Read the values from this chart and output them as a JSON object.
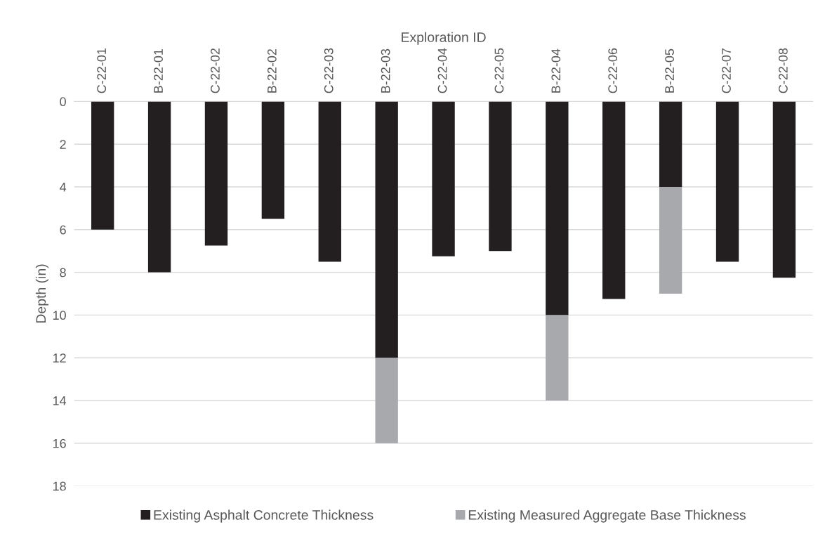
{
  "chart_data": {
    "type": "bar",
    "stacked": true,
    "xlabel": "Exploration ID",
    "ylabel": "Depth (in)",
    "categories": [
      "C-22-01",
      "B-22-01",
      "C-22-02",
      "B-22-02",
      "C-22-03",
      "B-22-03",
      "C-22-04",
      "C-22-05",
      "B-22-04",
      "C-22-06",
      "B-22-05",
      "C-22-07",
      "C-22-08"
    ],
    "series": [
      {
        "name": "Existing Asphalt Concrete Thickness",
        "color": "#231f20",
        "values": [
          6,
          8,
          6.75,
          5.5,
          7.5,
          12,
          7.25,
          7,
          10,
          9.25,
          4,
          7.5,
          8.25
        ]
      },
      {
        "name": "Existing Measured Aggregate Base Thickness",
        "color": "#a7a9ac",
        "values": [
          0,
          0,
          0,
          0,
          0,
          4,
          0,
          0,
          4,
          0,
          5,
          0,
          0
        ]
      }
    ],
    "ylim": [
      18,
      0
    ],
    "yticks": [
      0,
      2,
      4,
      6,
      8,
      10,
      12,
      14,
      16,
      18
    ],
    "grid": "y",
    "legend": "bottom"
  }
}
